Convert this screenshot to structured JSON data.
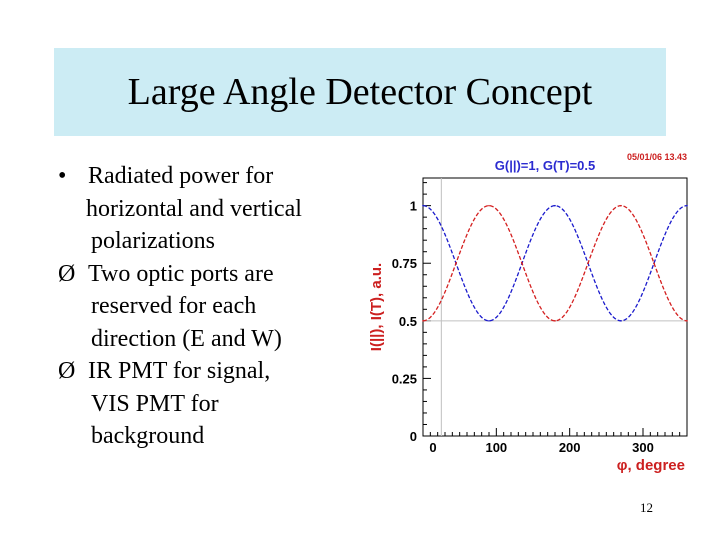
{
  "slide": {
    "title": "Large Angle Detector Concept",
    "slide_number": "12",
    "bullets": [
      {
        "marker": "•",
        "lines": [
          "Radiated power for",
          "horizontal and vertical",
          "polarizations"
        ]
      },
      {
        "marker": "Ø",
        "lines": [
          "Two optic ports are",
          "reserved for each",
          "direction (E and W)"
        ]
      },
      {
        "marker": "Ø",
        "lines": [
          "IR PMT for signal,",
          "VIS PMT for",
          "background"
        ]
      }
    ]
  },
  "chart_data": {
    "type": "line",
    "title": "G(||)=1, G(T)=0.5",
    "timestamp": "05/01/06  13.43",
    "xlabel": "φ, degree",
    "ylabel": "I(||), I(T), a.u.",
    "xlim": [
      0,
      360
    ],
    "ylim": [
      0,
      1.12
    ],
    "x_ticks": [
      "0",
      "100",
      "200",
      "300"
    ],
    "y_ticks": [
      "0",
      "0.25",
      "0.5",
      "0.75",
      "1"
    ],
    "series": [
      {
        "color": "#1a1acc",
        "style": "dashed",
        "function": "0.75 + 0.25*cos(2φ)",
        "points": [
          [
            0,
            1.0
          ],
          [
            45,
            0.75
          ],
          [
            90,
            0.5
          ],
          [
            135,
            0.75
          ],
          [
            180,
            1.0
          ],
          [
            225,
            0.75
          ],
          [
            270,
            0.5
          ],
          [
            315,
            0.75
          ],
          [
            360,
            1.0
          ]
        ]
      },
      {
        "color": "#d42020",
        "style": "dashed",
        "function": "0.75 - 0.25*cos(2φ)",
        "points": [
          [
            0,
            0.5
          ],
          [
            45,
            0.75
          ],
          [
            90,
            1.0
          ],
          [
            135,
            0.75
          ],
          [
            180,
            0.5
          ],
          [
            225,
            0.75
          ],
          [
            270,
            1.0
          ],
          [
            315,
            0.75
          ],
          [
            360,
            0.5
          ]
        ]
      }
    ],
    "colors": {
      "axis": "#000000",
      "title": "#2b2bd0",
      "xlabel": "#cc2020",
      "ylabel": "#cc2020",
      "grid": "#c0c0c0"
    }
  }
}
